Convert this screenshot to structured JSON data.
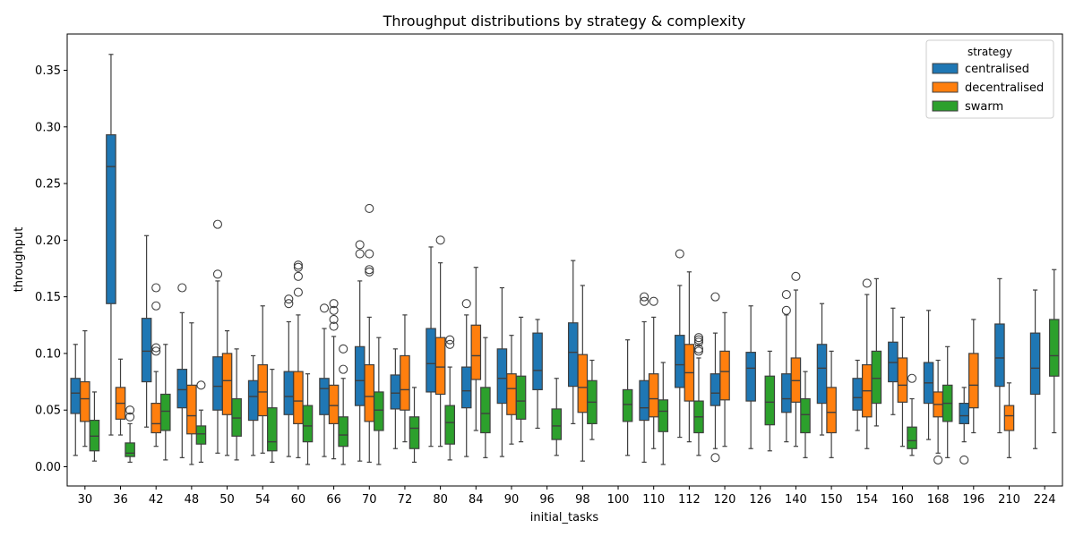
{
  "chart_data": {
    "type": "box",
    "title": "Throughput distributions by strategy & complexity",
    "xlabel": "initial_tasks",
    "ylabel": "throughput",
    "ylim": [
      -0.017,
      0.382
    ],
    "yticks": [
      0.0,
      0.05,
      0.1,
      0.15,
      0.2,
      0.25,
      0.3,
      0.35
    ],
    "ytick_labels": [
      "0.00",
      "0.05",
      "0.10",
      "0.15",
      "0.20",
      "0.25",
      "0.30",
      "0.35"
    ],
    "grid": false,
    "legend": {
      "title": "strategy",
      "placement": "top-right"
    },
    "categories": [
      "30",
      "36",
      "42",
      "48",
      "50",
      "54",
      "60",
      "66",
      "70",
      "72",
      "80",
      "84",
      "90",
      "96",
      "98",
      "100",
      "110",
      "112",
      "120",
      "126",
      "140",
      "150",
      "154",
      "160",
      "168",
      "196",
      "210",
      "224"
    ],
    "series": [
      {
        "name": "centralised",
        "color": "#1f77b4",
        "boxes": [
          {
            "category": "30",
            "min": 0.01,
            "q1": 0.047,
            "median": 0.065,
            "q3": 0.078,
            "max": 0.108,
            "outliers": []
          },
          {
            "category": "36",
            "min": 0.028,
            "q1": 0.144,
            "median": 0.265,
            "q3": 0.293,
            "max": 0.364,
            "outliers": []
          },
          {
            "category": "42",
            "min": 0.035,
            "q1": 0.075,
            "median": 0.102,
            "q3": 0.131,
            "max": 0.204,
            "outliers": []
          },
          {
            "category": "48",
            "min": 0.008,
            "q1": 0.052,
            "median": 0.068,
            "q3": 0.086,
            "max": 0.136,
            "outliers": [
              0.158
            ]
          },
          {
            "category": "50",
            "min": 0.012,
            "q1": 0.05,
            "median": 0.071,
            "q3": 0.097,
            "max": 0.164,
            "outliers": [
              0.17,
              0.214
            ]
          },
          {
            "category": "54",
            "min": 0.01,
            "q1": 0.041,
            "median": 0.062,
            "q3": 0.076,
            "max": 0.098,
            "outliers": []
          },
          {
            "category": "60",
            "min": 0.009,
            "q1": 0.046,
            "median": 0.062,
            "q3": 0.084,
            "max": 0.128,
            "outliers": [
              0.144,
              0.148
            ]
          },
          {
            "category": "66",
            "min": 0.009,
            "q1": 0.046,
            "median": 0.069,
            "q3": 0.078,
            "max": 0.122,
            "outliers": [
              0.14
            ]
          },
          {
            "category": "70",
            "min": 0.005,
            "q1": 0.054,
            "median": 0.076,
            "q3": 0.106,
            "max": 0.164,
            "outliers": [
              0.188,
              0.196
            ]
          },
          {
            "category": "72",
            "min": 0.016,
            "q1": 0.051,
            "median": 0.065,
            "q3": 0.081,
            "max": 0.104,
            "outliers": []
          },
          {
            "category": "80",
            "min": 0.018,
            "q1": 0.066,
            "median": 0.091,
            "q3": 0.122,
            "max": 0.194,
            "outliers": []
          },
          {
            "category": "84",
            "min": 0.009,
            "q1": 0.052,
            "median": 0.067,
            "q3": 0.088,
            "max": 0.134,
            "outliers": [
              0.144
            ]
          },
          {
            "category": "90",
            "min": 0.009,
            "q1": 0.056,
            "median": 0.078,
            "q3": 0.104,
            "max": 0.158,
            "outliers": []
          },
          {
            "category": "96",
            "min": 0.034,
            "q1": 0.068,
            "median": 0.085,
            "q3": 0.118,
            "max": 0.13,
            "outliers": []
          },
          {
            "category": "98",
            "min": 0.038,
            "q1": 0.071,
            "median": 0.101,
            "q3": 0.127,
            "max": 0.182,
            "outliers": []
          },
          {
            "category": "110",
            "min": 0.004,
            "q1": 0.041,
            "median": 0.052,
            "q3": 0.076,
            "max": 0.128,
            "outliers": [
              0.146,
              0.15
            ]
          },
          {
            "category": "112",
            "min": 0.026,
            "q1": 0.07,
            "median": 0.09,
            "q3": 0.116,
            "max": 0.16,
            "outliers": [
              0.188
            ]
          },
          {
            "category": "120",
            "min": 0.016,
            "q1": 0.054,
            "median": 0.065,
            "q3": 0.082,
            "max": 0.118,
            "outliers": [
              0.008,
              0.15
            ]
          },
          {
            "category": "126",
            "min": 0.016,
            "q1": 0.058,
            "median": 0.087,
            "q3": 0.101,
            "max": 0.142,
            "outliers": []
          },
          {
            "category": "140",
            "min": 0.022,
            "q1": 0.048,
            "median": 0.06,
            "q3": 0.082,
            "max": 0.134,
            "outliers": [
              0.138,
              0.152
            ]
          },
          {
            "category": "150",
            "min": 0.028,
            "q1": 0.056,
            "median": 0.087,
            "q3": 0.108,
            "max": 0.144,
            "outliers": []
          },
          {
            "category": "154",
            "min": 0.032,
            "q1": 0.05,
            "median": 0.061,
            "q3": 0.078,
            "max": 0.094,
            "outliers": []
          },
          {
            "category": "160",
            "min": 0.046,
            "q1": 0.075,
            "median": 0.092,
            "q3": 0.11,
            "max": 0.14,
            "outliers": []
          },
          {
            "category": "168",
            "min": 0.024,
            "q1": 0.056,
            "median": 0.074,
            "q3": 0.092,
            "max": 0.138,
            "outliers": []
          },
          {
            "category": "196",
            "min": 0.022,
            "q1": 0.038,
            "median": 0.045,
            "q3": 0.056,
            "max": 0.07,
            "outliers": [
              0.006
            ]
          },
          {
            "category": "210",
            "min": 0.03,
            "q1": 0.071,
            "median": 0.096,
            "q3": 0.126,
            "max": 0.166,
            "outliers": []
          },
          {
            "category": "224",
            "min": 0.016,
            "q1": 0.064,
            "median": 0.087,
            "q3": 0.118,
            "max": 0.156,
            "outliers": []
          }
        ]
      },
      {
        "name": "decentralised",
        "color": "#ff7f0e",
        "boxes": [
          {
            "category": "30",
            "min": 0.018,
            "q1": 0.04,
            "median": 0.06,
            "q3": 0.075,
            "max": 0.12,
            "outliers": []
          },
          {
            "category": "36",
            "min": 0.028,
            "q1": 0.042,
            "median": 0.056,
            "q3": 0.07,
            "max": 0.095,
            "outliers": []
          },
          {
            "category": "42",
            "min": 0.018,
            "q1": 0.03,
            "median": 0.038,
            "q3": 0.056,
            "max": 0.084,
            "outliers": [
              0.102,
              0.105,
              0.142,
              0.158
            ]
          },
          {
            "category": "48",
            "min": 0.002,
            "q1": 0.029,
            "median": 0.045,
            "q3": 0.072,
            "max": 0.127,
            "outliers": []
          },
          {
            "category": "50",
            "min": 0.01,
            "q1": 0.046,
            "median": 0.076,
            "q3": 0.1,
            "max": 0.12,
            "outliers": []
          },
          {
            "category": "54",
            "min": 0.012,
            "q1": 0.045,
            "median": 0.066,
            "q3": 0.09,
            "max": 0.142,
            "outliers": []
          },
          {
            "category": "60",
            "min": 0.008,
            "q1": 0.038,
            "median": 0.058,
            "q3": 0.084,
            "max": 0.134,
            "outliers": [
              0.154,
              0.168,
              0.176,
              0.178
            ]
          },
          {
            "category": "66",
            "min": 0.007,
            "q1": 0.038,
            "median": 0.054,
            "q3": 0.072,
            "max": 0.115,
            "outliers": [
              0.124,
              0.13,
              0.138,
              0.144
            ]
          },
          {
            "category": "70",
            "min": 0.004,
            "q1": 0.04,
            "median": 0.062,
            "q3": 0.09,
            "max": 0.132,
            "outliers": [
              0.172,
              0.174,
              0.188,
              0.228
            ]
          },
          {
            "category": "72",
            "min": 0.022,
            "q1": 0.05,
            "median": 0.068,
            "q3": 0.098,
            "max": 0.134,
            "outliers": []
          },
          {
            "category": "80",
            "min": 0.018,
            "q1": 0.064,
            "median": 0.088,
            "q3": 0.114,
            "max": 0.18,
            "outliers": [
              0.2
            ]
          },
          {
            "category": "84",
            "min": 0.032,
            "q1": 0.077,
            "median": 0.098,
            "q3": 0.125,
            "max": 0.176,
            "outliers": []
          },
          {
            "category": "90",
            "min": 0.02,
            "q1": 0.046,
            "median": 0.069,
            "q3": 0.082,
            "max": 0.116,
            "outliers": []
          },
          {
            "category": "98",
            "min": 0.005,
            "q1": 0.048,
            "median": 0.07,
            "q3": 0.099,
            "max": 0.16,
            "outliers": []
          },
          {
            "category": "110",
            "min": 0.016,
            "q1": 0.044,
            "median": 0.06,
            "q3": 0.082,
            "max": 0.132,
            "outliers": [
              0.146
            ]
          },
          {
            "category": "112",
            "min": 0.022,
            "q1": 0.058,
            "median": 0.083,
            "q3": 0.108,
            "max": 0.172,
            "outliers": []
          },
          {
            "category": "120",
            "min": 0.018,
            "q1": 0.059,
            "median": 0.084,
            "q3": 0.102,
            "max": 0.136,
            "outliers": []
          },
          {
            "category": "140",
            "min": 0.018,
            "q1": 0.057,
            "median": 0.076,
            "q3": 0.096,
            "max": 0.156,
            "outliers": [
              0.168
            ]
          },
          {
            "category": "150",
            "min": 0.008,
            "q1": 0.03,
            "median": 0.048,
            "q3": 0.07,
            "max": 0.102,
            "outliers": []
          },
          {
            "category": "154",
            "min": 0.016,
            "q1": 0.044,
            "median": 0.067,
            "q3": 0.09,
            "max": 0.152,
            "outliers": [
              0.162
            ]
          },
          {
            "category": "160",
            "min": 0.018,
            "q1": 0.057,
            "median": 0.072,
            "q3": 0.096,
            "max": 0.132,
            "outliers": []
          },
          {
            "category": "168",
            "min": 0.012,
            "q1": 0.044,
            "median": 0.055,
            "q3": 0.066,
            "max": 0.094,
            "outliers": [
              0.006
            ]
          },
          {
            "category": "196",
            "min": 0.03,
            "q1": 0.052,
            "median": 0.072,
            "q3": 0.1,
            "max": 0.13,
            "outliers": []
          },
          {
            "category": "210",
            "min": 0.008,
            "q1": 0.032,
            "median": 0.045,
            "q3": 0.054,
            "max": 0.074,
            "outliers": []
          }
        ]
      },
      {
        "name": "swarm",
        "color": "#2ca02c",
        "boxes": [
          {
            "category": "30",
            "min": 0.005,
            "q1": 0.014,
            "median": 0.027,
            "q3": 0.041,
            "max": 0.066,
            "outliers": []
          },
          {
            "category": "36",
            "min": 0.004,
            "q1": 0.009,
            "median": 0.012,
            "q3": 0.021,
            "max": 0.038,
            "outliers": [
              0.044,
              0.05
            ]
          },
          {
            "category": "42",
            "min": 0.006,
            "q1": 0.032,
            "median": 0.049,
            "q3": 0.064,
            "max": 0.108,
            "outliers": []
          },
          {
            "category": "48",
            "min": 0.004,
            "q1": 0.02,
            "median": 0.029,
            "q3": 0.036,
            "max": 0.05,
            "outliers": [
              0.072
            ]
          },
          {
            "category": "50",
            "min": 0.006,
            "q1": 0.027,
            "median": 0.043,
            "q3": 0.06,
            "max": 0.104,
            "outliers": []
          },
          {
            "category": "54",
            "min": 0.004,
            "q1": 0.014,
            "median": 0.022,
            "q3": 0.052,
            "max": 0.086,
            "outliers": []
          },
          {
            "category": "60",
            "min": 0.002,
            "q1": 0.022,
            "median": 0.036,
            "q3": 0.054,
            "max": 0.082,
            "outliers": []
          },
          {
            "category": "66",
            "min": 0.002,
            "q1": 0.018,
            "median": 0.028,
            "q3": 0.044,
            "max": 0.078,
            "outliers": [
              0.086,
              0.104
            ]
          },
          {
            "category": "70",
            "min": 0.002,
            "q1": 0.032,
            "median": 0.05,
            "q3": 0.066,
            "max": 0.114,
            "outliers": []
          },
          {
            "category": "72",
            "min": 0.004,
            "q1": 0.016,
            "median": 0.034,
            "q3": 0.044,
            "max": 0.07,
            "outliers": []
          },
          {
            "category": "80",
            "min": 0.006,
            "q1": 0.02,
            "median": 0.039,
            "q3": 0.054,
            "max": 0.088,
            "outliers": [
              0.108,
              0.112
            ]
          },
          {
            "category": "84",
            "min": 0.008,
            "q1": 0.03,
            "median": 0.047,
            "q3": 0.07,
            "max": 0.114,
            "outliers": []
          },
          {
            "category": "90",
            "min": 0.022,
            "q1": 0.042,
            "median": 0.058,
            "q3": 0.08,
            "max": 0.132,
            "outliers": []
          },
          {
            "category": "96",
            "min": 0.01,
            "q1": 0.024,
            "median": 0.036,
            "q3": 0.051,
            "max": 0.078,
            "outliers": []
          },
          {
            "category": "98",
            "min": 0.024,
            "q1": 0.038,
            "median": 0.057,
            "q3": 0.076,
            "max": 0.094,
            "outliers": []
          },
          {
            "category": "100",
            "min": 0.01,
            "q1": 0.04,
            "median": 0.055,
            "q3": 0.068,
            "max": 0.112,
            "outliers": []
          },
          {
            "category": "110",
            "min": 0.002,
            "q1": 0.031,
            "median": 0.049,
            "q3": 0.059,
            "max": 0.092,
            "outliers": []
          },
          {
            "category": "112",
            "min": 0.01,
            "q1": 0.03,
            "median": 0.044,
            "q3": 0.058,
            "max": 0.096,
            "outliers": [
              0.102,
              0.104,
              0.11,
              0.112,
              0.114
            ]
          },
          {
            "category": "126",
            "min": 0.014,
            "q1": 0.037,
            "median": 0.057,
            "q3": 0.08,
            "max": 0.102,
            "outliers": []
          },
          {
            "category": "140",
            "min": 0.008,
            "q1": 0.03,
            "median": 0.046,
            "q3": 0.06,
            "max": 0.084,
            "outliers": []
          },
          {
            "category": "154",
            "min": 0.036,
            "q1": 0.056,
            "median": 0.078,
            "q3": 0.102,
            "max": 0.166,
            "outliers": []
          },
          {
            "category": "160",
            "min": 0.01,
            "q1": 0.016,
            "median": 0.023,
            "q3": 0.035,
            "max": 0.06,
            "outliers": [
              0.078
            ]
          },
          {
            "category": "168",
            "min": 0.008,
            "q1": 0.04,
            "median": 0.056,
            "q3": 0.072,
            "max": 0.106,
            "outliers": []
          },
          {
            "category": "224",
            "min": 0.03,
            "q1": 0.08,
            "median": 0.098,
            "q3": 0.13,
            "max": 0.174,
            "outliers": []
          }
        ]
      }
    ]
  }
}
